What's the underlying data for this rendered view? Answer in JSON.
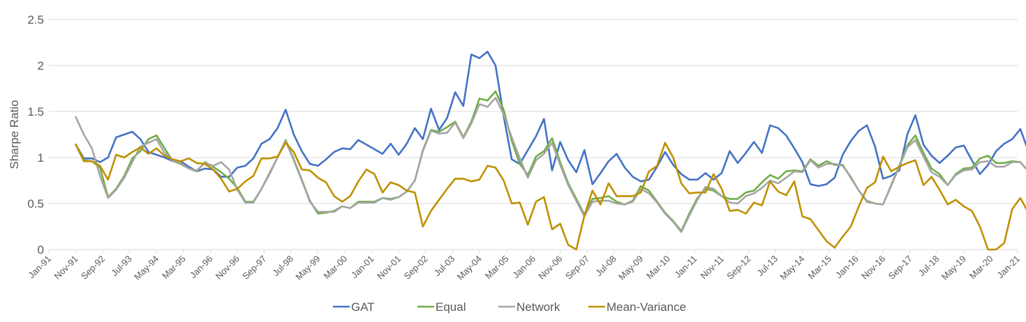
{
  "chart_data": {
    "type": "line",
    "title": "",
    "xlabel": "",
    "ylabel": "Sharpe Ratio",
    "ylim": [
      0,
      2.5
    ],
    "yticks": [
      "0",
      "0.5",
      "1",
      "1.5",
      "2",
      "2.5"
    ],
    "x_tick_labels": [
      "Jan-91",
      "Nov-91",
      "Sep-92",
      "Jul-93",
      "May-94",
      "Mar-95",
      "Jan-96",
      "Nov-96",
      "Sep-97",
      "Jul-98",
      "May-99",
      "Mar-00",
      "Jan-01",
      "Nov-01",
      "Sep-02",
      "Jul-03",
      "May-04",
      "Mar-05",
      "Jan-06",
      "Nov-06",
      "Sep-07",
      "Jul-08",
      "May-09",
      "Mar-10",
      "Jan-11",
      "Nov-11",
      "Sep-12",
      "Jul-13",
      "May-14",
      "Mar-15",
      "Jan-16",
      "Nov-16",
      "Sep-17",
      "Jul-18",
      "May-19",
      "Mar-20",
      "Jan-21"
    ],
    "x_start_month_index": 10,
    "x_step_months": 3,
    "x_total_months": 360,
    "grid": true,
    "legend_position": "bottom",
    "series": [
      {
        "name": "GAT",
        "color": "#4472C4",
        "values": [
          1.14,
          0.99,
          0.99,
          0.95,
          1.0,
          1.22,
          1.25,
          1.28,
          1.2,
          1.06,
          1.03,
          1.0,
          0.96,
          0.96,
          0.9,
          0.85,
          0.88,
          0.87,
          0.79,
          0.79,
          0.89,
          0.91,
          0.99,
          1.15,
          1.2,
          1.32,
          1.52,
          1.25,
          1.07,
          0.93,
          0.91,
          0.98,
          1.06,
          1.1,
          1.09,
          1.19,
          1.14,
          1.09,
          1.04,
          1.15,
          1.03,
          1.15,
          1.32,
          1.2,
          1.53,
          1.3,
          1.43,
          1.71,
          1.56,
          2.12,
          2.08,
          2.15,
          2.0,
          1.45,
          0.98,
          0.93,
          1.08,
          1.23,
          1.42,
          0.86,
          1.17,
          0.97,
          0.84,
          1.08,
          0.71,
          0.83,
          0.96,
          1.04,
          0.89,
          0.79,
          0.74,
          0.76,
          0.9,
          1.06,
          0.92,
          0.82,
          0.76,
          0.76,
          0.83,
          0.76,
          0.83,
          1.07,
          0.94,
          1.05,
          1.17,
          1.05,
          1.35,
          1.32,
          1.24,
          1.1,
          0.95,
          0.71,
          0.69,
          0.71,
          0.78,
          1.03,
          1.18,
          1.29,
          1.35,
          1.12,
          0.77,
          0.8,
          0.86,
          1.25,
          1.46,
          1.14,
          1.02,
          0.94,
          1.02,
          1.11,
          1.13,
          0.97,
          0.82,
          0.92,
          1.07,
          1.15,
          1.2,
          1.31,
          1.07,
          1.0
        ]
      },
      {
        "name": "Equal",
        "color": "#70AD47",
        "values": [
          1.14,
          0.97,
          0.96,
          0.89,
          0.57,
          0.66,
          0.8,
          0.99,
          1.07,
          1.2,
          1.24,
          1.1,
          0.96,
          0.93,
          0.88,
          0.85,
          0.95,
          0.9,
          0.84,
          0.77,
          0.67,
          0.52,
          0.52,
          0.66,
          0.83,
          1.0,
          1.19,
          0.98,
          0.76,
          0.53,
          0.39,
          0.4,
          0.42,
          0.47,
          0.45,
          0.52,
          0.52,
          0.52,
          0.56,
          0.55,
          0.57,
          0.63,
          0.75,
          1.08,
          1.3,
          1.28,
          1.33,
          1.39,
          1.22,
          1.39,
          1.64,
          1.62,
          1.72,
          1.52,
          1.18,
          0.93,
          0.81,
          1.01,
          1.07,
          1.21,
          0.95,
          0.72,
          0.55,
          0.38,
          0.55,
          0.56,
          0.58,
          0.52,
          0.49,
          0.53,
          0.69,
          0.64,
          0.52,
          0.4,
          0.31,
          0.2,
          0.39,
          0.56,
          0.66,
          0.64,
          0.58,
          0.55,
          0.55,
          0.62,
          0.64,
          0.73,
          0.81,
          0.77,
          0.85,
          0.86,
          0.85,
          0.98,
          0.91,
          0.96,
          0.92,
          0.92,
          0.78,
          0.64,
          0.52,
          0.5,
          0.49,
          0.7,
          0.91,
          1.13,
          1.24,
          1.05,
          0.88,
          0.82,
          0.7,
          0.82,
          0.88,
          0.89,
          0.99,
          1.02,
          0.94,
          0.94,
          0.96,
          0.95,
          0.85,
          0.73
        ]
      },
      {
        "name": "Network",
        "color": "#A5A5A5",
        "values": [
          1.44,
          1.25,
          1.1,
          0.8,
          0.56,
          0.65,
          0.78,
          0.95,
          1.12,
          1.16,
          1.2,
          1.05,
          0.96,
          0.94,
          0.88,
          0.86,
          0.94,
          0.91,
          0.95,
          0.87,
          0.65,
          0.51,
          0.51,
          0.66,
          0.82,
          1.0,
          1.18,
          0.97,
          0.75,
          0.52,
          0.41,
          0.41,
          0.41,
          0.47,
          0.45,
          0.51,
          0.51,
          0.51,
          0.56,
          0.54,
          0.57,
          0.63,
          0.75,
          1.07,
          1.29,
          1.26,
          1.27,
          1.38,
          1.21,
          1.37,
          1.58,
          1.55,
          1.65,
          1.47,
          1.22,
          0.99,
          0.78,
          0.97,
          1.04,
          1.16,
          0.92,
          0.7,
          0.53,
          0.36,
          0.52,
          0.53,
          0.53,
          0.5,
          0.49,
          0.52,
          0.66,
          0.61,
          0.51,
          0.39,
          0.3,
          0.19,
          0.37,
          0.54,
          0.68,
          0.66,
          0.58,
          0.51,
          0.5,
          0.58,
          0.61,
          0.67,
          0.75,
          0.72,
          0.78,
          0.85,
          0.84,
          0.97,
          0.89,
          0.93,
          0.93,
          0.91,
          0.79,
          0.64,
          0.53,
          0.5,
          0.49,
          0.69,
          0.9,
          1.11,
          1.19,
          1.01,
          0.84,
          0.79,
          0.7,
          0.81,
          0.86,
          0.87,
          0.95,
          0.96,
          0.9,
          0.9,
          0.95,
          0.95,
          0.85,
          0.73
        ]
      },
      {
        "name": "Mean-Variance",
        "color": "#BF9000",
        "values": [
          1.14,
          0.96,
          0.96,
          0.91,
          0.76,
          1.03,
          1.0,
          1.06,
          1.11,
          1.04,
          1.1,
          1.02,
          0.98,
          0.96,
          0.99,
          0.94,
          0.93,
          0.87,
          0.77,
          0.63,
          0.66,
          0.74,
          0.8,
          0.99,
          0.99,
          1.01,
          1.16,
          1.06,
          0.87,
          0.86,
          0.78,
          0.73,
          0.58,
          0.52,
          0.58,
          0.74,
          0.87,
          0.82,
          0.62,
          0.73,
          0.7,
          0.64,
          0.62,
          0.25,
          0.42,
          0.54,
          0.66,
          0.77,
          0.77,
          0.74,
          0.76,
          0.91,
          0.89,
          0.75,
          0.5,
          0.51,
          0.27,
          0.52,
          0.57,
          0.22,
          0.28,
          0.05,
          0.0,
          0.37,
          0.64,
          0.49,
          0.72,
          0.58,
          0.58,
          0.58,
          0.62,
          0.85,
          0.91,
          1.16,
          1.0,
          0.72,
          0.61,
          0.62,
          0.62,
          0.82,
          0.66,
          0.42,
          0.43,
          0.39,
          0.51,
          0.48,
          0.74,
          0.63,
          0.59,
          0.74,
          0.36,
          0.33,
          0.21,
          0.09,
          0.02,
          0.14,
          0.25,
          0.47,
          0.67,
          0.73,
          1.01,
          0.85,
          0.9,
          0.94,
          0.97,
          0.7,
          0.79,
          0.65,
          0.49,
          0.54,
          0.47,
          0.42,
          0.25,
          0.0,
          0.0,
          0.07,
          0.44,
          0.56,
          0.4,
          0.48
        ]
      }
    ]
  }
}
